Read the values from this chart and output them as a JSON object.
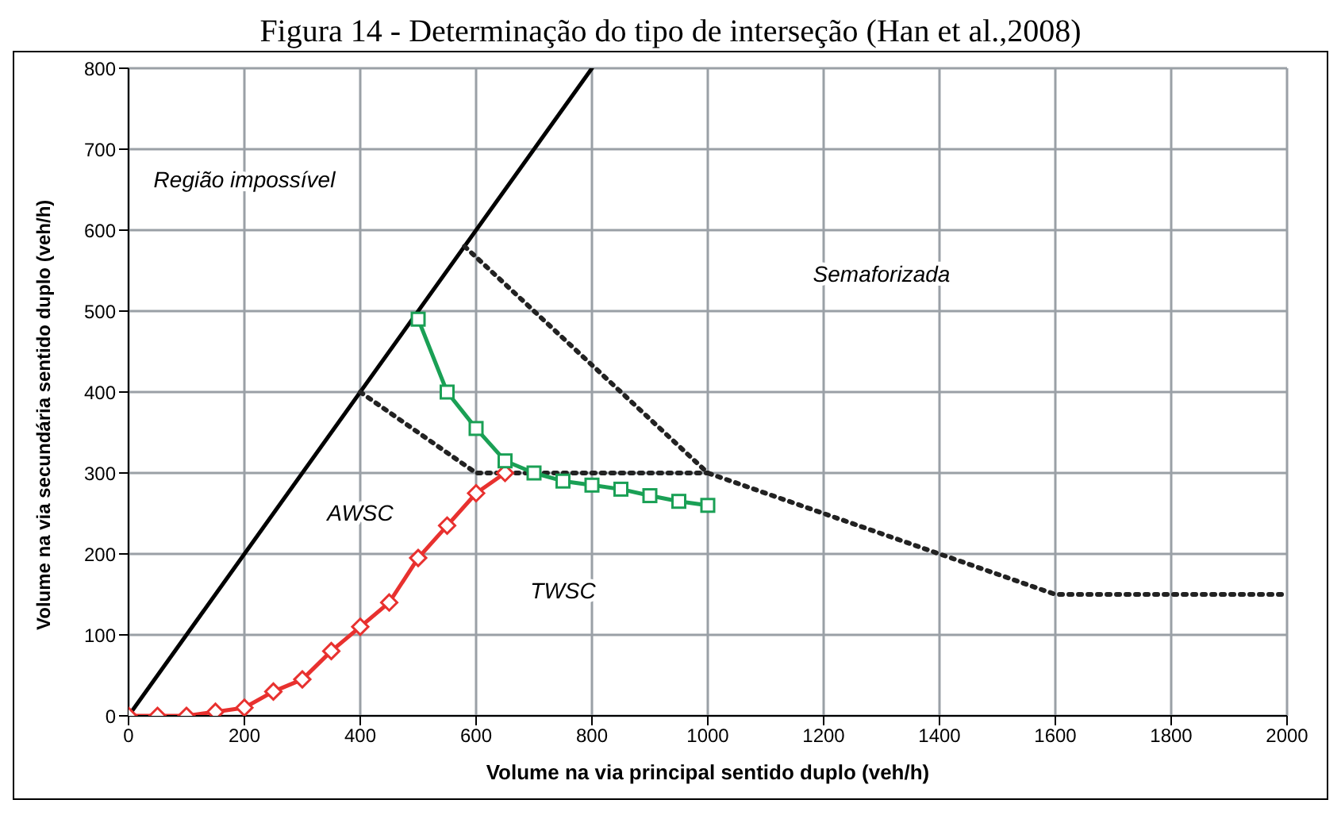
{
  "chart_data": {
    "type": "line",
    "title": "Figura 14 - Determinação do tipo de interseção (Han et al.,2008)",
    "xlabel": "Volume na via principal sentido duplo (veh/h)",
    "ylabel": "Volume na via secundária sentido duplo (veh/h)",
    "xlim": [
      0,
      2000
    ],
    "xticks": [
      0,
      200,
      400,
      600,
      800,
      1000,
      1200,
      1400,
      1600,
      1800,
      2000
    ],
    "ylim": [
      0,
      800
    ],
    "yticks": [
      0,
      100,
      200,
      300,
      400,
      500,
      600,
      700,
      800
    ],
    "grid": true,
    "legend": false,
    "series": [
      {
        "color": "#000000",
        "marker": "none",
        "line_style": "solid",
        "x": [
          0,
          800
        ],
        "values": [
          0,
          800
        ]
      },
      {
        "color": "#222222",
        "marker": "none",
        "line_style": "dotted",
        "x": [
          400,
          600,
          1000
        ],
        "values": [
          400,
          300,
          300
        ]
      },
      {
        "color": "#222222",
        "marker": "none",
        "line_style": "dotted",
        "x": [
          580,
          1000,
          1600,
          2000
        ],
        "values": [
          580,
          300,
          150,
          150
        ]
      },
      {
        "color": "#e8312f",
        "marker": "diamond",
        "line_style": "solid",
        "x": [
          0,
          50,
          100,
          150,
          200,
          250,
          300,
          350,
          400,
          450,
          500,
          550,
          600,
          650
        ],
        "values": [
          0,
          0,
          0,
          5,
          10,
          30,
          45,
          80,
          110,
          140,
          195,
          235,
          275,
          300
        ]
      },
      {
        "color": "#1aa055",
        "marker": "square",
        "line_style": "solid",
        "x": [
          500,
          550,
          600,
          650,
          700,
          750,
          800,
          850,
          900,
          950,
          1000
        ],
        "values": [
          490,
          400,
          355,
          315,
          300,
          290,
          285,
          280,
          272,
          265,
          260
        ]
      }
    ],
    "annotations": [
      "Região impossível",
      "Semaforizada",
      "AWSC",
      "TWSC"
    ]
  }
}
